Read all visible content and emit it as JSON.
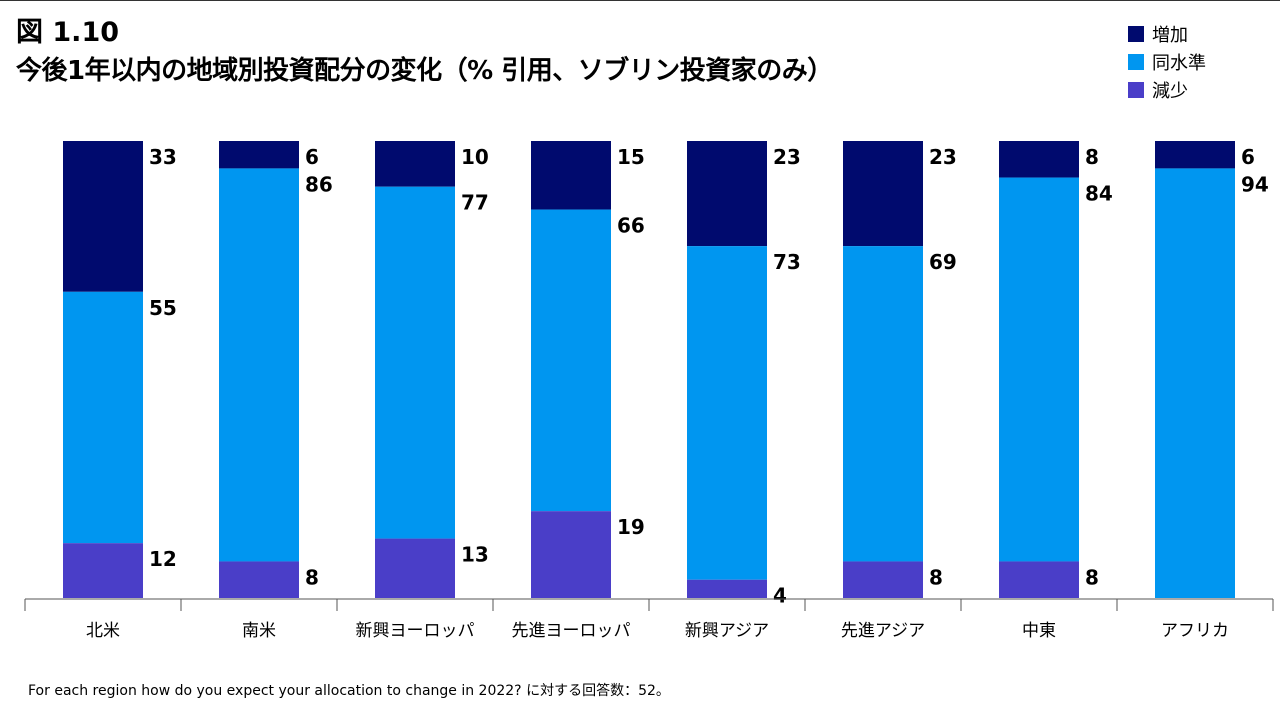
{
  "figure": {
    "number": "図 1.10",
    "title": "今後1年以内の地域別投資配分の変化（% 引用、ソブリン投資家のみ）"
  },
  "legend": [
    {
      "label": "増加",
      "color": "#000a6e"
    },
    {
      "label": "同水準",
      "color": "#0096f0"
    },
    {
      "label": "減少",
      "color": "#4a3ec8"
    }
  ],
  "footnote": "For each region how do you expect your allocation to change in 2022?  に対する回答数：52。",
  "chart_data": {
    "type": "bar",
    "stacked": true,
    "title": "今後1年以内の地域別投資配分の変化（% 引用、ソブリン投資家のみ）",
    "categories": [
      "北米",
      "南米",
      "新興ヨーロッパ",
      "先進ヨーロッパ",
      "新興アジア",
      "先進アジア",
      "中東",
      "アフリカ"
    ],
    "series": [
      {
        "name": "増加",
        "color": "#000a6e",
        "values": [
          33,
          6,
          10,
          15,
          23,
          23,
          8,
          6
        ]
      },
      {
        "name": "同水準",
        "color": "#0096f0",
        "values": [
          55,
          86,
          77,
          66,
          73,
          69,
          84,
          94
        ]
      },
      {
        "name": "減少",
        "color": "#4a3ec8",
        "values": [
          12,
          8,
          13,
          19,
          4,
          8,
          8,
          0
        ]
      }
    ],
    "ylim": [
      0,
      100
    ],
    "xlabel": "",
    "ylabel": "",
    "grid": false
  }
}
